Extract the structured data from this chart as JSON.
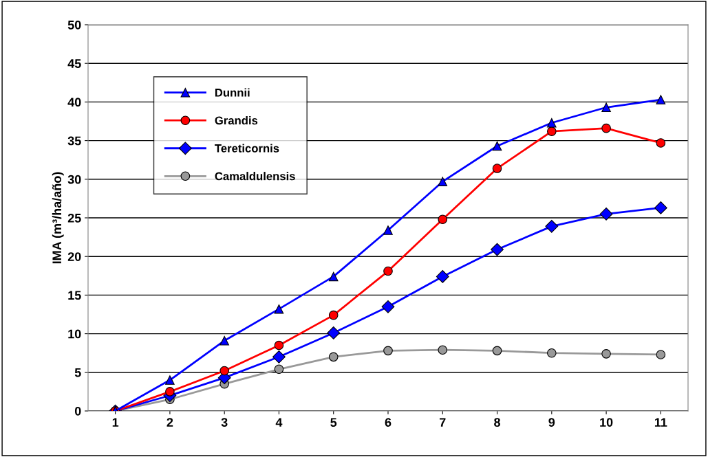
{
  "chart_data": {
    "type": "line",
    "ylabel": "IMA (m³/ha/año)",
    "categories": [
      "1",
      "2",
      "3",
      "4",
      "5",
      "6",
      "7",
      "8",
      "9",
      "10",
      "11"
    ],
    "series": [
      {
        "name": "Dunnii",
        "color": "#0000ff",
        "marker": "triangle",
        "values": [
          0,
          4.0,
          9.1,
          13.2,
          17.4,
          23.4,
          29.7,
          34.3,
          37.3,
          39.3,
          40.3
        ]
      },
      {
        "name": "Grandis",
        "color": "#ff0000",
        "marker": "circle",
        "values": [
          0,
          2.5,
          5.2,
          8.5,
          12.4,
          18.1,
          24.8,
          31.4,
          36.2,
          36.6,
          34.7
        ]
      },
      {
        "name": "Tereticornis",
        "color": "#0000ff",
        "marker": "diamond",
        "values": [
          0,
          2.0,
          4.3,
          7.0,
          10.1,
          13.5,
          17.4,
          20.9,
          23.9,
          25.5,
          26.3
        ]
      },
      {
        "name": "Camaldulensis",
        "color": "#999999",
        "marker": "circle",
        "values": [
          0,
          1.5,
          3.5,
          5.4,
          7.0,
          7.8,
          7.9,
          7.8,
          7.5,
          7.4,
          7.3
        ]
      }
    ],
    "ylim": [
      0,
      50
    ],
    "yticks": [
      0,
      5,
      10,
      15,
      20,
      25,
      30,
      35,
      40,
      45,
      50
    ],
    "grid": "y",
    "legend": "top left",
    "line_style": "solid"
  }
}
